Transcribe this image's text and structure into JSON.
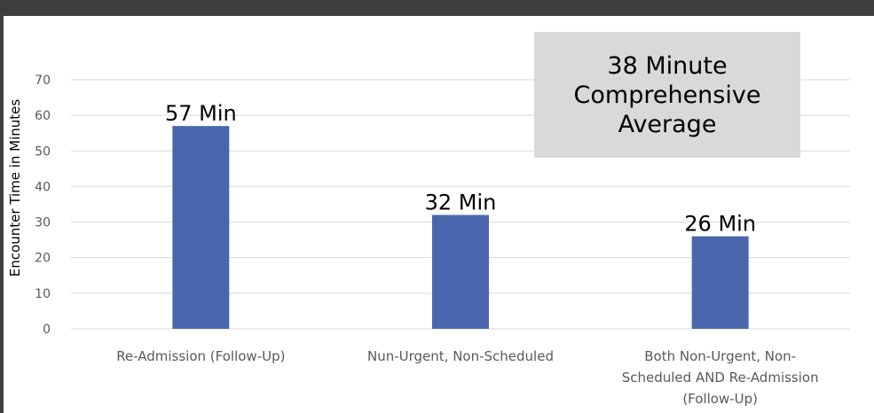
{
  "chart_data": {
    "type": "bar",
    "categories": [
      [
        "Re-Admission (Follow-Up)"
      ],
      [
        "Nun-Urgent, Non-Scheduled"
      ],
      [
        "Both Non-Urgent, Non-",
        "Scheduled AND Re-Admission",
        "(Follow-Up)"
      ]
    ],
    "values": [
      57,
      32,
      26
    ],
    "data_labels": [
      "57 Min",
      "32 Min",
      "26 Min"
    ],
    "ylabel": "Encounter Time in Minutes",
    "ylim": [
      0,
      70
    ],
    "yticks": [
      0,
      10,
      20,
      30,
      40,
      50,
      60,
      70
    ],
    "grid": true,
    "bar_color": "#4a67ad",
    "grid_color": "#d9d9d9",
    "annotation": "38 Minute\nComprehensive\nAverage",
    "annotation_bg": "#d9d9d9"
  }
}
